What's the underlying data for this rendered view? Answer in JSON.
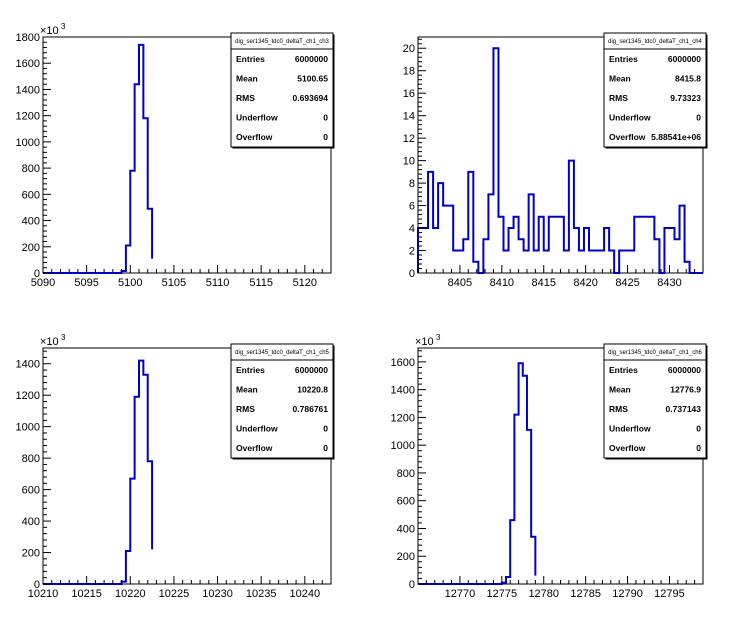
{
  "style": {
    "line_color": "#0000cc",
    "frame_color": "#000000",
    "background": "#ffffff"
  },
  "chart_data": [
    {
      "type": "bar",
      "title": "",
      "xlabel": "",
      "ylabel": "",
      "multiplier": "10^3",
      "multiplier_base": "×10",
      "multiplier_exp": "3",
      "xlim": [
        5090,
        5123
      ],
      "ylim": [
        0,
        1800
      ],
      "xticks": [
        5090,
        5095,
        5100,
        5105,
        5110,
        5115,
        5120
      ],
      "yticks": [
        0,
        200,
        400,
        600,
        800,
        1000,
        1200,
        1400,
        1600,
        1800
      ],
      "bin_edges": [
        5099,
        5099.5,
        5100,
        5100.5,
        5101,
        5101.5,
        5102,
        5102.5
      ],
      "values": [
        15,
        210,
        780,
        1440,
        1740,
        1180,
        490,
        110
      ],
      "legend": {
        "name": "dig_ser1345_tdc0_deltaT_ch1_ch3",
        "stats": [
          {
            "label": "Entries",
            "value": "6000000"
          },
          {
            "label": "Mean",
            "value": "5100.65"
          },
          {
            "label": "RMS",
            "value": "0.693694"
          },
          {
            "label": "Underflow",
            "value": "0"
          },
          {
            "label": "Overflow",
            "value": "0"
          }
        ]
      }
    },
    {
      "type": "bar",
      "title": "",
      "xlabel": "",
      "ylabel": "",
      "multiplier": "",
      "xlim": [
        8400,
        8434
      ],
      "ylim": [
        0,
        21
      ],
      "xticks": [
        8405,
        8410,
        8415,
        8420,
        8425,
        8430
      ],
      "yticks": [
        0,
        2,
        4,
        6,
        8,
        10,
        12,
        14,
        16,
        18,
        20
      ],
      "bin_start": 8400,
      "bin_width": 0.6,
      "values": [
        4,
        4,
        9,
        4,
        8,
        6,
        6,
        2,
        2,
        3,
        9,
        1,
        0,
        3,
        7,
        20,
        5,
        2,
        4,
        5,
        3,
        2,
        7,
        2,
        5,
        2,
        5,
        5,
        5,
        2,
        10,
        4,
        2,
        4,
        2,
        2,
        2,
        4,
        2,
        0,
        2,
        2,
        2,
        5,
        5,
        5,
        5,
        3,
        0,
        4,
        4,
        3,
        6,
        1
      ],
      "legend": {
        "name": "dig_ser1345_tdc0_deltaT_ch1_ch4",
        "stats": [
          {
            "label": "Entries",
            "value": "6000000"
          },
          {
            "label": "Mean",
            "value": "8415.8"
          },
          {
            "label": "RMS",
            "value": "9.73323"
          },
          {
            "label": "Underflow",
            "value": "0"
          },
          {
            "label": "Overflow",
            "value": "5.88541e+06"
          }
        ]
      }
    },
    {
      "type": "bar",
      "title": "",
      "xlabel": "",
      "ylabel": "",
      "multiplier": "10^3",
      "multiplier_base": "×10",
      "multiplier_exp": "3",
      "xlim": [
        10210,
        10243
      ],
      "ylim": [
        0,
        1500
      ],
      "xticks": [
        10210,
        10215,
        10220,
        10225,
        10230,
        10235,
        10240
      ],
      "yticks": [
        0,
        200,
        400,
        600,
        800,
        1000,
        1200,
        1400
      ],
      "bin_edges": [
        10219,
        10219.5,
        10220,
        10220.5,
        10221,
        10221.5,
        10222,
        10222.5
      ],
      "values": [
        15,
        210,
        670,
        1190,
        1420,
        1330,
        780,
        220
      ],
      "legend": {
        "name": "dig_ser1345_tdc0_deltaT_ch1_ch5",
        "stats": [
          {
            "label": "Entries",
            "value": "6000000"
          },
          {
            "label": "Mean",
            "value": "10220.8"
          },
          {
            "label": "RMS",
            "value": "0.786761"
          },
          {
            "label": "Underflow",
            "value": "0"
          },
          {
            "label": "Overflow",
            "value": "0"
          }
        ]
      }
    },
    {
      "type": "bar",
      "title": "",
      "xlabel": "",
      "ylabel": "",
      "multiplier": "10^3",
      "multiplier_base": "×10",
      "multiplier_exp": "3",
      "xlim": [
        12765,
        12799
      ],
      "ylim": [
        0,
        1700
      ],
      "xticks": [
        12770,
        12775,
        12780,
        12785,
        12790,
        12795
      ],
      "yticks": [
        0,
        200,
        400,
        600,
        800,
        1000,
        1200,
        1400,
        1600
      ],
      "bin_edges": [
        12775,
        12775.5,
        12776,
        12776.5,
        12777,
        12777.5,
        12778,
        12778.5,
        12779
      ],
      "values": [
        10,
        50,
        460,
        1220,
        1590,
        1500,
        1110,
        340,
        60
      ],
      "legend": {
        "name": "dig_ser1345_tdc0_deltaT_ch1_ch6",
        "stats": [
          {
            "label": "Entries",
            "value": "6000000"
          },
          {
            "label": "Mean",
            "value": "12776.9"
          },
          {
            "label": "RMS",
            "value": "0.737143"
          },
          {
            "label": "Underflow",
            "value": "0"
          },
          {
            "label": "Overflow",
            "value": "0"
          }
        ]
      }
    }
  ]
}
